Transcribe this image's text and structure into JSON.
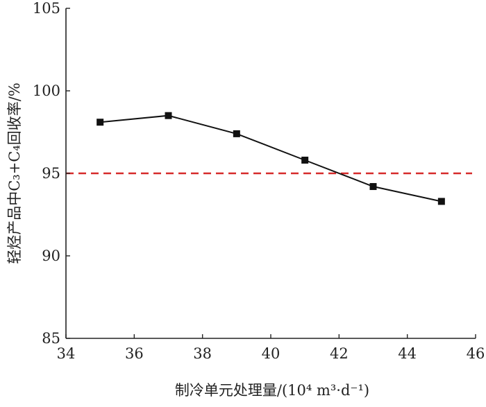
{
  "chart_data": {
    "type": "line",
    "xlabel": "制冷单元处理量/(10⁴ m³·d⁻¹)",
    "ylabel": "轻烃产品中C₃+C₄回收率/%",
    "xlim": [
      34,
      46
    ],
    "ylim": [
      85,
      105
    ],
    "xticks": [
      "34",
      "36",
      "38",
      "40",
      "42",
      "44",
      "46"
    ],
    "yticks": [
      "85",
      "90",
      "95",
      "100",
      "105"
    ],
    "grid": false,
    "series": [
      {
        "x": [
          35,
          37,
          39,
          41,
          43,
          45
        ],
        "y": [
          98.1,
          98.5,
          97.4,
          95.8,
          94.2,
          93.3
        ],
        "color": "#111111",
        "marker": "square"
      }
    ],
    "reference_line": {
      "y": 95,
      "color": "#d62a2a",
      "style": "dashed"
    }
  }
}
